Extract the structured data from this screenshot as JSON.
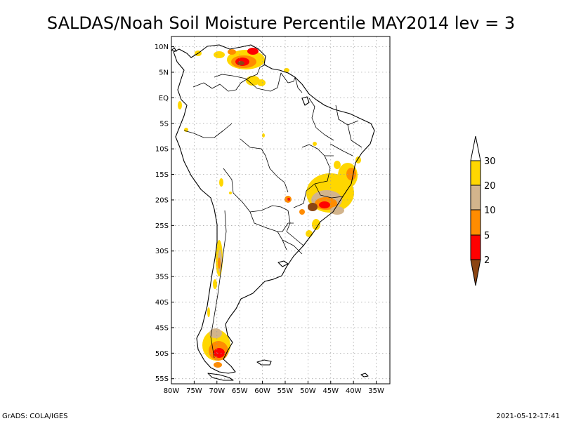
{
  "title": "SALDAS/Noah Soil Moisture Percentile MAY2014 lev = 3",
  "footer_left": "GrADS: COLA/IGES",
  "footer_right": "2021-05-12-17:41",
  "map": {
    "lon_range": [
      -80,
      -32
    ],
    "lat_range": [
      -56,
      12
    ],
    "lat_ticks": [
      {
        "value": 10,
        "label": "10N"
      },
      {
        "value": 5,
        "label": "5N"
      },
      {
        "value": 0,
        "label": "EQ"
      },
      {
        "value": -5,
        "label": "5S"
      },
      {
        "value": -10,
        "label": "10S"
      },
      {
        "value": -15,
        "label": "15S"
      },
      {
        "value": -20,
        "label": "20S"
      },
      {
        "value": -25,
        "label": "25S"
      },
      {
        "value": -30,
        "label": "30S"
      },
      {
        "value": -35,
        "label": "35S"
      },
      {
        "value": -40,
        "label": "40S"
      },
      {
        "value": -45,
        "label": "45S"
      },
      {
        "value": -50,
        "label": "50S"
      },
      {
        "value": -55,
        "label": "55S"
      }
    ],
    "lon_ticks": [
      {
        "value": -80,
        "label": "80W"
      },
      {
        "value": -75,
        "label": "75W"
      },
      {
        "value": -70,
        "label": "70W"
      },
      {
        "value": -65,
        "label": "65W"
      },
      {
        "value": -60,
        "label": "60W"
      },
      {
        "value": -55,
        "label": "55W"
      },
      {
        "value": -50,
        "label": "50W"
      },
      {
        "value": -45,
        "label": "45W"
      },
      {
        "value": -40,
        "label": "40W"
      },
      {
        "value": -35,
        "label": "35W"
      }
    ],
    "grid": true
  },
  "colorbar": {
    "labels": [
      "30",
      "20",
      "10",
      "5",
      "2"
    ],
    "colors": {
      "gt30": "#ffffff",
      "20-30": "#ffd700",
      "10-20": "#d2b48c",
      "5-10": "#ff8c00",
      "2-5": "#ff0000",
      "lt2": "#8b4513"
    }
  },
  "anomaly_regions": [
    {
      "region": "Venezuela/Guiana",
      "level": "lt2-10"
    },
    {
      "region": "Southeast Brazil",
      "level": "lt2-30"
    },
    {
      "region": "Central Chile",
      "level": "10-30"
    },
    {
      "region": "Southern Patagonia",
      "level": "2-30"
    }
  ]
}
